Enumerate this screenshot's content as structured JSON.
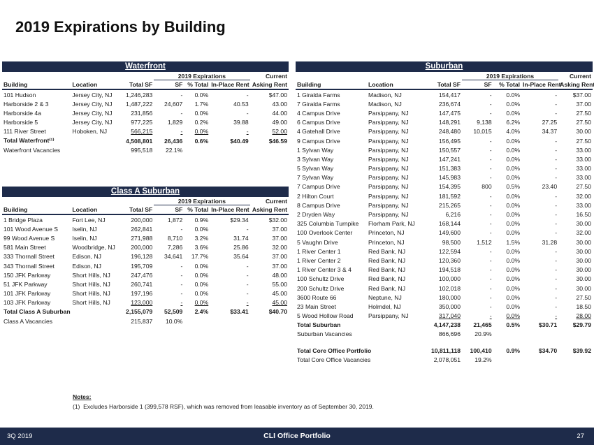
{
  "title": "2019 Expirations by Building",
  "waterfront": {
    "title": "Waterfront",
    "group_header": "2019 Expirations",
    "current_header": "Current",
    "columns": [
      "Building",
      "Location",
      "Total SF",
      "SF",
      "% Total",
      "In-Place Rent",
      "Asking Rent"
    ],
    "rows": [
      [
        "101 Hudson",
        "Jersey City, NJ",
        "1,246,283",
        "-",
        "0.0%",
        "-",
        "$47.00"
      ],
      [
        "Harborside 2 & 3",
        "Jersey City, NJ",
        "1,487,222",
        "24,607",
        "1.7%",
        "40.53",
        "43.00"
      ],
      [
        "Harborside 4a",
        "Jersey City, NJ",
        "231,856",
        "-",
        "0.0%",
        "-",
        "44.00"
      ],
      [
        "Harborside 5",
        "Jersey City, NJ",
        "977,225",
        "1,829",
        "0.2%",
        "39.88",
        "49.00"
      ],
      [
        "111 River Street",
        "Hoboken, NJ",
        "566,215",
        "-",
        "0.0%",
        "-",
        "52.00"
      ]
    ],
    "total": [
      "Total Waterfront⁽¹⁾",
      "",
      "4,508,801",
      "26,436",
      "0.6%",
      "$40.49",
      "$46.59"
    ],
    "vacancy": [
      "Waterfront Vacancies",
      "",
      "995,518",
      "22.1%"
    ]
  },
  "class_a_suburban": {
    "title": "Class A Suburban",
    "group_header": "2019 Expirations",
    "current_header": "Current",
    "columns": [
      "Building",
      "Location",
      "Total SF",
      "SF",
      "% Total",
      "In-Place Rent",
      "Asking Rent"
    ],
    "rows": [
      [
        "1 Bridge Plaza",
        "Fort Lee, NJ",
        "200,000",
        "1,872",
        "0.9%",
        "$29.34",
        "$32.00"
      ],
      [
        "101 Wood Avenue S",
        "Iselin, NJ",
        "262,841",
        "-",
        "0.0%",
        "-",
        "37.00"
      ],
      [
        "99 Wood Avenue S",
        "Iselin, NJ",
        "271,988",
        "8,710",
        "3.2%",
        "31.74",
        "37.00"
      ],
      [
        "581 Main Street",
        "Woodbridge, NJ",
        "200,000",
        "7,286",
        "3.6%",
        "25.86",
        "32.00"
      ],
      [
        "333 Thornall Street",
        "Edison, NJ",
        "196,128",
        "34,641",
        "17.7%",
        "35.64",
        "37.00"
      ],
      [
        "343 Thornall Street",
        "Edison, NJ",
        "195,709",
        "-",
        "0.0%",
        "-",
        "37.00"
      ],
      [
        "150 JFK Parkway",
        "Short Hills, NJ",
        "247,476",
        "-",
        "0.0%",
        "-",
        "48.00"
      ],
      [
        "51 JFK Parkway",
        "Short Hills, NJ",
        "260,741",
        "-",
        "0.0%",
        "-",
        "55.00"
      ],
      [
        "101 JFK Parkway",
        "Short Hills, NJ",
        "197,196",
        "-",
        "0.0%",
        "-",
        "45.00"
      ],
      [
        "103 JFK Parkway",
        "Short Hills, NJ",
        "123,000",
        "-",
        "0.0%",
        "-",
        "45.00"
      ]
    ],
    "total": [
      "Total Class A Suburban",
      "",
      "2,155,079",
      "52,509",
      "2.4%",
      "$33.41",
      "$40.70"
    ],
    "vacancy": [
      "Class A Vacancies",
      "",
      "215,837",
      "10.0%"
    ]
  },
  "suburban": {
    "title": "Suburban",
    "group_header": "2019 Expirations",
    "current_header": "Current",
    "columns": [
      "Building",
      "Location",
      "Total SF",
      "SF",
      "% Total",
      "In-Place Rent",
      "Asking Rent"
    ],
    "rows": [
      [
        "1 Giralda Farms",
        "Madison, NJ",
        "154,417",
        "-",
        "0.0%",
        "-",
        "$37.00"
      ],
      [
        "7 Giralda Farms",
        "Madison, NJ",
        "236,674",
        "-",
        "0.0%",
        "-",
        "37.00"
      ],
      [
        "4 Campus Drive",
        "Parsippany, NJ",
        "147,475",
        "-",
        "0.0%",
        "-",
        "27.50"
      ],
      [
        "6 Campus Drive",
        "Parsippany, NJ",
        "148,291",
        "9,138",
        "6.2%",
        "27.25",
        "27.50"
      ],
      [
        "4 Gatehall Drive",
        "Parsippany, NJ",
        "248,480",
        "10,015",
        "4.0%",
        "34.37",
        "30.00"
      ],
      [
        "9 Campus Drive",
        "Parsippany, NJ",
        "156,495",
        "-",
        "0.0%",
        "-",
        "27.50"
      ],
      [
        "1 Sylvan Way",
        "Parsippany, NJ",
        "150,557",
        "-",
        "0.0%",
        "-",
        "33.00"
      ],
      [
        "3 Sylvan Way",
        "Parsippany, NJ",
        "147,241",
        "-",
        "0.0%",
        "-",
        "33.00"
      ],
      [
        "5 Sylvan Way",
        "Parsippany, NJ",
        "151,383",
        "-",
        "0.0%",
        "-",
        "33.00"
      ],
      [
        "7 Sylvan Way",
        "Parsippany, NJ",
        "145,983",
        "-",
        "0.0%",
        "-",
        "33.00"
      ],
      [
        "7 Campus Drive",
        "Parsippany, NJ",
        "154,395",
        "800",
        "0.5%",
        "23.40",
        "27.50"
      ],
      [
        "2 Hilton Court",
        "Parsippany, NJ",
        "181,592",
        "-",
        "0.0%",
        "-",
        "32.00"
      ],
      [
        "8 Campus Drive",
        "Parsippany, NJ",
        "215,265",
        "-",
        "0.0%",
        "-",
        "33.00"
      ],
      [
        "2 Dryden Way",
        "Parsippany, NJ",
        "6,216",
        "-",
        "0.0%",
        "-",
        "16.50"
      ],
      [
        "325 Columbia Turnpike",
        "Florham Park, NJ",
        "168,144",
        "-",
        "0.0%",
        "-",
        "30.00"
      ],
      [
        "100 Overlook Center",
        "Princeton, NJ",
        "149,600",
        "-",
        "0.0%",
        "-",
        "32.00"
      ],
      [
        "5 Vaughn Drive",
        "Princeton, NJ",
        "98,500",
        "1,512",
        "1.5%",
        "31.28",
        "30.00"
      ],
      [
        "1 River Center 1",
        "Red Bank, NJ",
        "122,594",
        "-",
        "0.0%",
        "-",
        "30.00"
      ],
      [
        "1 River Center 2",
        "Red Bank, NJ",
        "120,360",
        "-",
        "0.0%",
        "-",
        "30.00"
      ],
      [
        "1 River Center 3 & 4",
        "Red Bank, NJ",
        "194,518",
        "-",
        "0.0%",
        "-",
        "30.00"
      ],
      [
        "100 Schultz Drive",
        "Red Bank, NJ",
        "100,000",
        "-",
        "0.0%",
        "-",
        "30.00"
      ],
      [
        "200 Schultz Drive",
        "Red Bank, NJ",
        "102,018",
        "-",
        "0.0%",
        "-",
        "30.00"
      ],
      [
        "3600 Route 66",
        "Neptune, NJ",
        "180,000",
        "-",
        "0.0%",
        "-",
        "27.50"
      ],
      [
        "23 Main Street",
        "Holmdel, NJ",
        "350,000",
        "-",
        "0.0%",
        "-",
        "18.50"
      ],
      [
        "5 Wood Hollow Road",
        "Parsippany, NJ",
        "317,040",
        "-",
        "0.0%",
        "-",
        "28.00"
      ]
    ],
    "total": [
      "Total Suburban",
      "",
      "4,147,238",
      "21,465",
      "0.5%",
      "$30.71",
      "$29.79"
    ],
    "vacancy": [
      "Suburban Vacancies",
      "",
      "866,696",
      "20.9%"
    ],
    "portfolio_total": [
      "Total Core Office Portfolio",
      "",
      "10,811,118",
      "100,410",
      "0.9%",
      "$34.70",
      "$39.92"
    ],
    "portfolio_vacancy": [
      "Total Core Office Vacancies",
      "",
      "2,078,051",
      "19.2%"
    ]
  },
  "notes": {
    "heading": "Notes:",
    "items": [
      {
        "marker": "(1)",
        "text": "Excludes Harborside 1 (399,578 RSF), which was removed from leasable inventory as of September 30, 2019."
      }
    ]
  },
  "footer": {
    "left": "3Q 2019",
    "center": "CLI Office Portfolio",
    "right": "27"
  }
}
